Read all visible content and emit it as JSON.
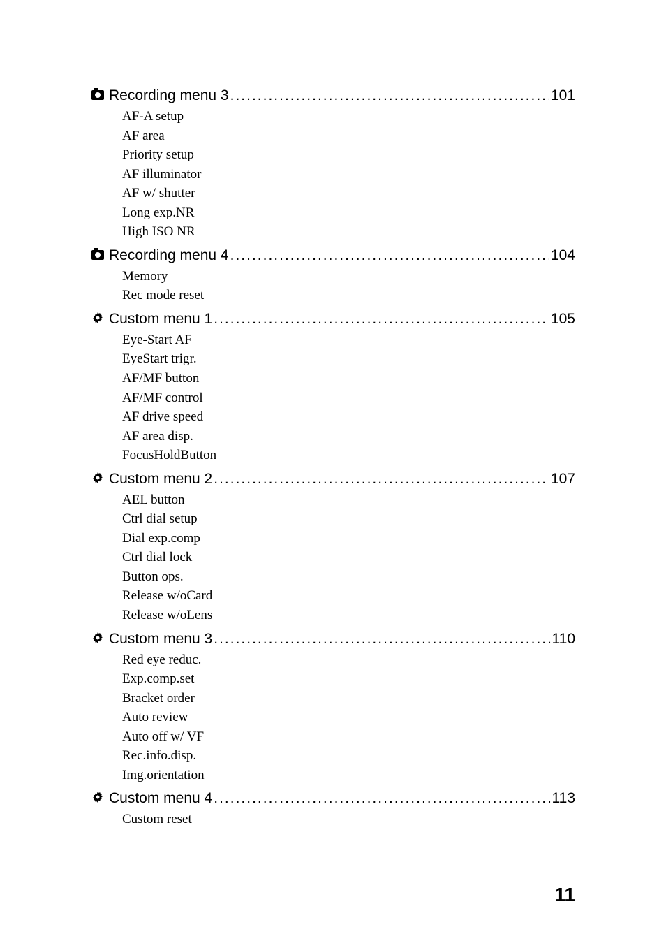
{
  "sections": [
    {
      "icon": "camera",
      "title": " Recording menu 3 ",
      "page": "101",
      "items": [
        "AF-A setup",
        "AF area",
        "Priority setup",
        "AF illuminator",
        "AF w/ shutter",
        "Long exp.NR",
        "High ISO NR"
      ]
    },
    {
      "icon": "camera",
      "title": " Recording menu 4 ",
      "page": "104",
      "items": [
        "Memory",
        "Rec mode reset"
      ]
    },
    {
      "icon": "gear",
      "title": " Custom menu 1",
      "page": "105",
      "items": [
        "Eye-Start AF",
        "EyeStart trigr.",
        "AF/MF button",
        "AF/MF control",
        "AF drive speed",
        "AF area disp.",
        "FocusHoldButton"
      ]
    },
    {
      "icon": "gear",
      "title": " Custom menu 2",
      "page": "107",
      "items": [
        "AEL button",
        "Ctrl dial setup",
        "Dial exp.comp",
        "Ctrl dial lock",
        "Button ops.",
        "Release w/oCard",
        "Release w/oLens"
      ]
    },
    {
      "icon": "gear",
      "title": " Custom menu 3",
      "page": "110",
      "items": [
        "Red eye reduc.",
        "Exp.comp.set",
        "Bracket order",
        "Auto review",
        "Auto off w/ VF",
        "Rec.info.disp.",
        "Img.orientation"
      ]
    },
    {
      "icon": "gear",
      "title": " Custom menu 4",
      "page": "113",
      "items": [
        "Custom reset"
      ]
    }
  ],
  "page_number": "11",
  "dots_fill": "..........................................................................................",
  "colors": {
    "background": "#ffffff",
    "text": "#000000"
  },
  "typography": {
    "heading_font": "Arial",
    "heading_size": 21,
    "body_font": "Times New Roman",
    "body_size": 19,
    "page_num_size": 28
  }
}
